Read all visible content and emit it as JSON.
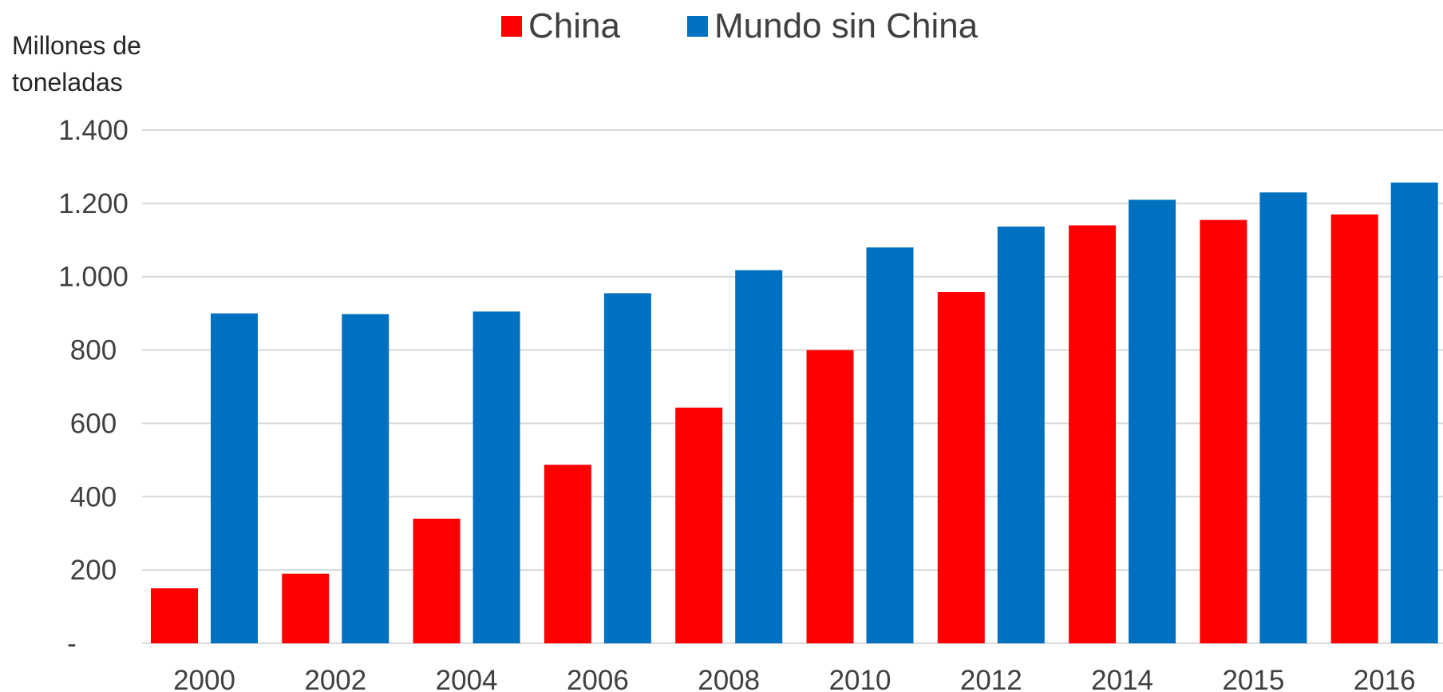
{
  "chart_data": {
    "type": "bar",
    "ylabel": "Millones de toneladas",
    "categories": [
      "2000",
      "2002",
      "2004",
      "2006",
      "2008",
      "2010",
      "2012",
      "2014",
      "2015",
      "2016"
    ],
    "series": [
      {
        "name": "China",
        "color": "#FF0000",
        "values": [
          150,
          190,
          340,
          487,
          643,
          800,
          958,
          1140,
          1155,
          1170
        ]
      },
      {
        "name": "Mundo sin China",
        "color": "#0070C0",
        "values": [
          900,
          898,
          905,
          955,
          1018,
          1080,
          1137,
          1210,
          1230,
          1257
        ]
      }
    ],
    "ylim": [
      0,
      1400
    ],
    "yticks": [
      {
        "value": 0,
        "label": "-"
      },
      {
        "value": 200,
        "label": "200"
      },
      {
        "value": 400,
        "label": "400"
      },
      {
        "value": 600,
        "label": "600"
      },
      {
        "value": 800,
        "label": "800"
      },
      {
        "value": 1000,
        "label": "1.000"
      },
      {
        "value": 1200,
        "label": "1.200"
      },
      {
        "value": 1400,
        "label": "1.400"
      }
    ],
    "grid": true,
    "legend": "top"
  }
}
